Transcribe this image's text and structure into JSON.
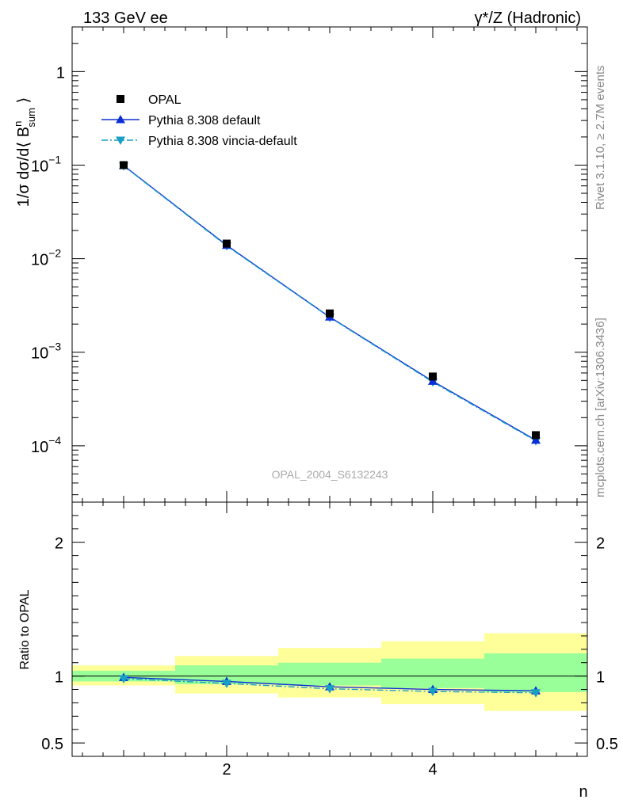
{
  "header": {
    "left": "133 GeV ee",
    "right": "γ*/Z (Hadronic)"
  },
  "side_text": {
    "upper": "Rivet 3.1.10, ≥ 2.7M events",
    "lower": "mcplots.cern.ch [arXiv:1306.3436]"
  },
  "analysis_label": "OPAL_2004_S6132243",
  "colors": {
    "opal": "#000000",
    "pythia_default": "#0b2fd6",
    "pythia_vincia": "#1a9fc4",
    "band_inner": "#99ff99",
    "band_outer": "#ffff99"
  },
  "chart_data": [
    {
      "type": "scatter",
      "panel": "main",
      "y_scale": "log",
      "xlim": [
        0.5,
        5.5
      ],
      "ylim": [
        2.5e-05,
        3
      ],
      "ylabel": "1/σ dσ/d⟨ B^n_sum ⟩",
      "y_ticks": [
        {
          "value": 1,
          "label": "1"
        },
        {
          "value": 0.1,
          "label": "10",
          "exp": "−1"
        },
        {
          "value": 0.01,
          "label": "10",
          "exp": "−2"
        },
        {
          "value": 0.001,
          "label": "10",
          "exp": "−3"
        },
        {
          "value": 0.0001,
          "label": "10",
          "exp": "−4"
        }
      ],
      "legend_position": "top-left",
      "series": [
        {
          "name": "OPAL",
          "marker": "square",
          "x": [
            1,
            2,
            3,
            4,
            5
          ],
          "values": [
            0.1,
            0.0145,
            0.0026,
            0.00055,
            0.00013
          ]
        },
        {
          "name": "Pythia 8.308 default",
          "marker": "triangle-up",
          "line": "solid",
          "x": [
            1,
            2,
            3,
            4,
            5
          ],
          "values": [
            0.099,
            0.0139,
            0.00238,
            0.00049,
            0.000115
          ]
        },
        {
          "name": "Pythia 8.308 vincia-default",
          "marker": "triangle-down",
          "line": "dash-dot",
          "x": [
            1,
            2,
            3,
            4,
            5
          ],
          "values": [
            0.098,
            0.0137,
            0.00236,
            0.00048,
            0.000113
          ]
        }
      ]
    },
    {
      "type": "line",
      "panel": "ratio",
      "xlim": [
        0.5,
        5.5
      ],
      "ylim": [
        0.4,
        2.3
      ],
      "xlabel": "n",
      "ylabel": "Ratio to OPAL",
      "x_ticks": [
        {
          "value": 2,
          "label": "2"
        },
        {
          "value": 4,
          "label": "4"
        }
      ],
      "y_ticks": [
        {
          "value": 0.5,
          "label": "0.5"
        },
        {
          "value": 1,
          "label": "1"
        },
        {
          "value": 2,
          "label": "2"
        }
      ],
      "bands": [
        {
          "x_low": 0.5,
          "x_high": 1.5,
          "inner": [
            0.96,
            1.04
          ],
          "outer": [
            0.93,
            1.08
          ]
        },
        {
          "x_low": 1.5,
          "x_high": 2.5,
          "inner": [
            0.94,
            1.08
          ],
          "outer": [
            0.87,
            1.15
          ]
        },
        {
          "x_low": 2.5,
          "x_high": 3.5,
          "inner": [
            0.93,
            1.1
          ],
          "outer": [
            0.84,
            1.21
          ]
        },
        {
          "x_low": 3.5,
          "x_high": 4.5,
          "inner": [
            0.91,
            1.13
          ],
          "outer": [
            0.79,
            1.26
          ]
        },
        {
          "x_low": 4.5,
          "x_high": 5.5,
          "inner": [
            0.88,
            1.17
          ],
          "outer": [
            0.74,
            1.32
          ]
        }
      ],
      "series": [
        {
          "name": "Pythia 8.308 default",
          "marker": "triangle-up",
          "line": "solid",
          "x": [
            1,
            2,
            3,
            4,
            5
          ],
          "values": [
            0.99,
            0.96,
            0.92,
            0.9,
            0.89
          ]
        },
        {
          "name": "Pythia 8.308 vincia-default",
          "marker": "triangle-down",
          "line": "dash-dot",
          "x": [
            1,
            2,
            3,
            4,
            5
          ],
          "values": [
            0.98,
            0.945,
            0.905,
            0.885,
            0.875
          ]
        }
      ]
    }
  ]
}
